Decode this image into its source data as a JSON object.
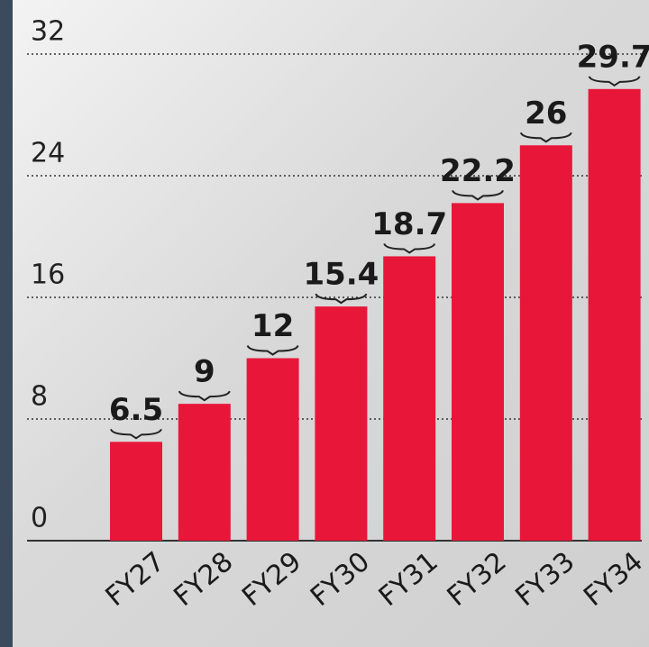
{
  "chart_data": {
    "type": "bar",
    "categories": [
      "FY27",
      "FY28",
      "FY29",
      "FY30",
      "FY31",
      "FY32",
      "FY33",
      "FY34"
    ],
    "values": [
      6.5,
      9,
      12,
      15.4,
      18.7,
      22.2,
      26,
      29.7
    ],
    "color": "#e8173a",
    "ylim": [
      0,
      32
    ],
    "yticks": [
      0,
      8,
      16,
      24,
      32
    ],
    "grid": true
  }
}
